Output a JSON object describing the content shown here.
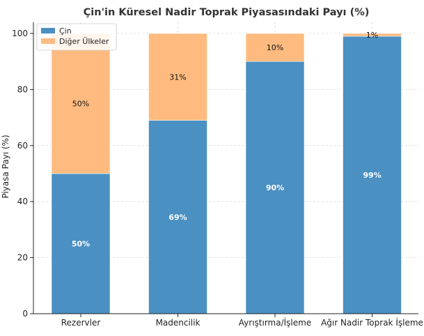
{
  "chart_data": {
    "type": "bar",
    "stacked": true,
    "title": "Çin'in Küresel Nadir Toprak Piyasasındaki Payı (%)",
    "xlabel": "",
    "ylabel": "Piyasa Payı (%)",
    "ylim": [
      0,
      100
    ],
    "yticks": [
      0,
      20,
      40,
      60,
      80,
      100
    ],
    "grid": true,
    "legend_position": "top-left",
    "categories": [
      "Rezervler",
      "Madencilik",
      "Ayrıştırma/İşleme",
      "Ağır Nadir Toprak İşleme"
    ],
    "series": [
      {
        "name": "Çin",
        "values": [
          50,
          69,
          90,
          99
        ],
        "labels": [
          "50%",
          "69%",
          "90%",
          "99%"
        ],
        "color": "#4a90c2"
      },
      {
        "name": "Diğer Ülkeler",
        "values": [
          50,
          31,
          10,
          1
        ],
        "labels": [
          "50%",
          "31%",
          "10%",
          "1%"
        ],
        "color": "#ffbb7f"
      }
    ]
  }
}
